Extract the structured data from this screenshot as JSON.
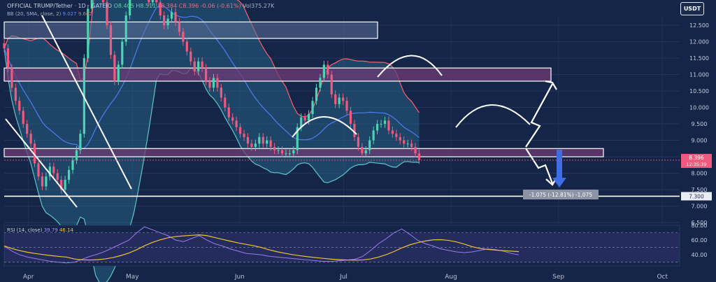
{
  "header": {
    "symbol": "OFFICIAL TRUMP/Tether",
    "timeframe": "1D",
    "exchange": "GATEIO",
    "o": "O8.405",
    "h": "H8.511",
    "l": "L8.384",
    "c": "C8.396",
    "change": "-0.06 (-0.61%)",
    "vol": "Vol375.27K",
    "indicator": "BB (20, SMA, close, 2)",
    "bb_values": [
      "9.027",
      "9.662"
    ]
  },
  "currency_badge": "USDT",
  "rsi": {
    "label": "RSI (14, close)",
    "value": "39.79",
    "ma_value": "46.14"
  },
  "price_label": {
    "value": "8.396",
    "time": "12:35:39"
  },
  "target_label": "7.300",
  "measure_label": "-1.075 (-12.81%) -1,075",
  "colors": {
    "background": "#142548",
    "up": "#4fd3b2",
    "down": "#f05a7e",
    "bb_basis": "#4e7cf2",
    "bb_band": "#ff5f6d",
    "bb_fill": "#2a6c8f",
    "zone": "#6e3b74",
    "rsi_line": "#9e7bf0",
    "rsi_ma": "#f1c232"
  },
  "chart_data": {
    "type": "candlestick",
    "title": "OFFICIAL TRUMP/Tether · 1D · GATEIO",
    "x_ticks": [
      "Apr",
      "May",
      "Jun",
      "Jul",
      "Aug",
      "Sep",
      "Oct"
    ],
    "x_range_dates": [
      "2025-03-25",
      "2025-10-06"
    ],
    "y_ticks": [
      "12.500",
      "12.000",
      "11.500",
      "11.000",
      "10.500",
      "10.000",
      "9.500",
      "9.000",
      "8.500",
      "8.000",
      "7.500",
      "7.000",
      "6.500"
    ],
    "ylim": [
      6.5,
      12.8
    ],
    "last_price": 8.396,
    "target_price": 7.3,
    "measured_move": -1.075,
    "resistance_zones": [
      {
        "from": 12.1,
        "to": 12.6
      },
      {
        "from": 10.8,
        "to": 11.2
      },
      {
        "from": 8.5,
        "to": 8.75
      }
    ],
    "support_line": 7.3,
    "daily_closes": [
      11.8,
      11.2,
      10.6,
      10.2,
      9.9,
      9.5,
      9.2,
      8.9,
      8.3,
      7.9,
      7.6,
      7.9,
      8.2,
      8.0,
      7.8,
      7.5,
      7.8,
      8.1,
      8.4,
      8.7,
      9.2,
      11.5,
      13.0,
      14.5,
      15.0,
      14.0,
      13.2,
      12.5,
      11.6,
      10.8,
      11.3,
      12.0,
      12.8,
      13.5,
      14.2,
      13.9,
      13.6,
      13.4,
      13.2,
      13.5,
      13.2,
      12.8,
      12.5,
      12.7,
      12.9,
      12.6,
      12.3,
      12.0,
      11.7,
      11.4,
      11.1,
      11.4,
      11.2,
      10.8,
      10.6,
      10.9,
      10.6,
      10.3,
      10.0,
      9.7,
      9.6,
      9.4,
      9.2,
      9.1,
      8.9,
      8.8,
      8.9,
      9.1,
      8.9,
      9.0,
      8.8,
      8.7,
      8.7,
      8.6,
      8.6,
      8.6,
      8.7,
      9.4,
      9.7,
      9.6,
      9.8,
      10.2,
      10.6,
      10.9,
      11.3,
      11.0,
      10.4,
      10.1,
      10.3,
      10.2,
      9.9,
      9.5,
      9.1,
      8.8,
      8.6,
      8.7,
      9.0,
      9.3,
      9.5,
      9.5,
      9.6,
      9.3,
      9.2,
      9.1,
      9.0,
      8.9,
      8.9,
      8.8,
      8.6,
      8.4
    ],
    "rsi": {
      "levels": [
        70,
        50,
        30
      ],
      "y_ticks": [
        "80.00",
        "60.00",
        "40.00"
      ],
      "ylim": [
        25,
        80
      ],
      "values": [
        52,
        45,
        40,
        37,
        35,
        33,
        31,
        30,
        29,
        30,
        34,
        38,
        41,
        45,
        50,
        55,
        60,
        70,
        78,
        74,
        70,
        66,
        60,
        58,
        62,
        66,
        60,
        55,
        52,
        48,
        45,
        42,
        41,
        40,
        38,
        37,
        36,
        35,
        34,
        33,
        32,
        31,
        31,
        32,
        33,
        34,
        38,
        46,
        55,
        62,
        70,
        75,
        68,
        60,
        55,
        52,
        48,
        46,
        44,
        43,
        44,
        46,
        48,
        47,
        45,
        42,
        40
      ]
    }
  }
}
